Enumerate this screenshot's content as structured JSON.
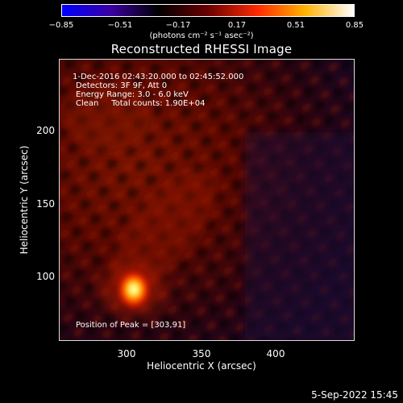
{
  "colorbar": {
    "ticks": [
      "−0.85",
      "−0.51",
      "−0.17",
      "0.17",
      "0.51",
      "0.85"
    ],
    "units": "(photons cm⁻² s⁻¹ asec⁻²)",
    "colors": [
      "#0000ff",
      "#3a00a0",
      "#000000",
      "#6a0000",
      "#ff2a00",
      "#ffb000",
      "#ffffff"
    ]
  },
  "title": "Reconstructed RHESSI Image",
  "info": {
    "line1": "1-Dec-2016 02:43:20.000 to 02:45:52.000",
    "line2": "Detectors: 3F 9F, Att 0",
    "line3": "Energy Range: 3.0 - 6.0 keV",
    "line4": "Clean     Total counts: 1.90E+04",
    "peak": "Position of Peak = [303,91]"
  },
  "axes": {
    "xlabel": "Heliocentric X (arcsec)",
    "ylabel": "Heliocentric Y (arcsec)",
    "xticks": [
      "300",
      "350",
      "400"
    ],
    "yticks": [
      "100",
      "150",
      "200"
    ]
  },
  "datestamp": "5-Sep-2022 15:45"
}
